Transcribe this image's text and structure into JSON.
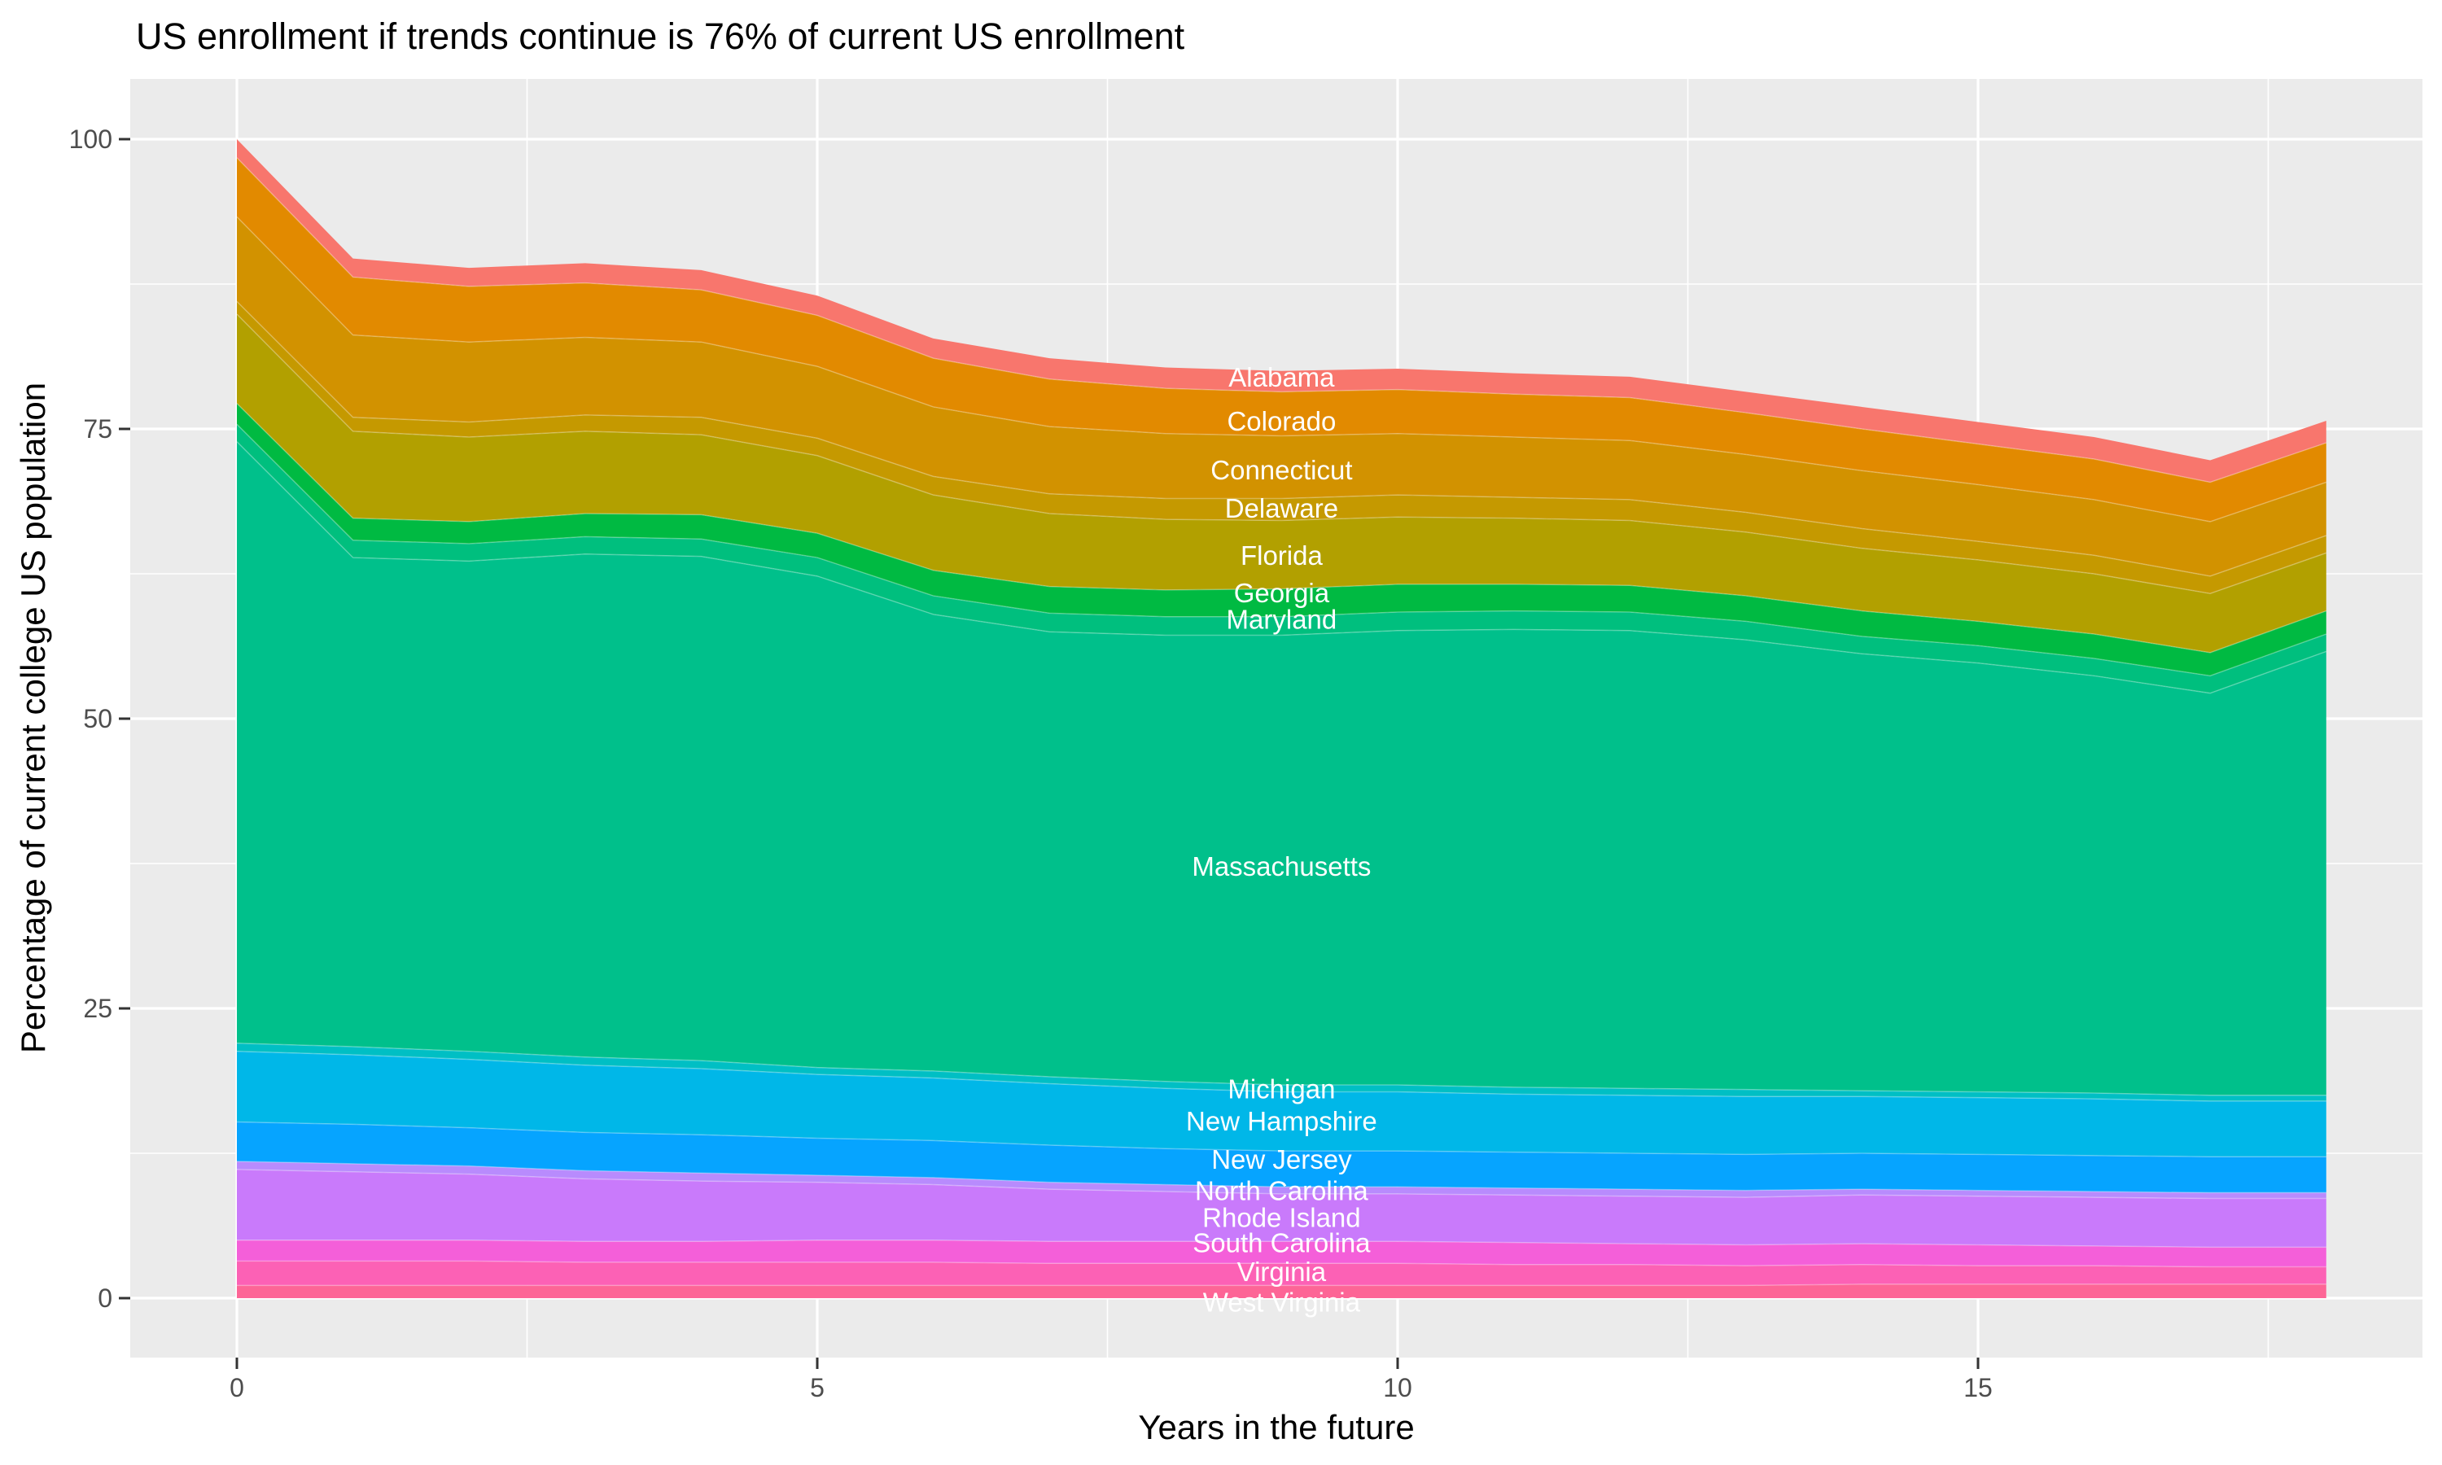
{
  "title": "US enrollment if trends continue is 76% of current US enrollment",
  "style": {
    "page_bg": "#FFFFFF",
    "panel_bg": "#EBEBEB",
    "grid_color": "#FFFFFF",
    "tick_color": "#333333",
    "tick_label_color": "#4D4D4D",
    "state_label_color": "#FFFFFF",
    "title_color": "#000000"
  },
  "chart_data": {
    "type": "area",
    "stacked": true,
    "title": "US enrollment if trends continue is 76% of current US enrollment",
    "xlabel": "Years in the future",
    "ylabel": "Percentage of current college US population",
    "x": [
      0,
      1,
      2,
      3,
      4,
      5,
      6,
      7,
      8,
      9,
      10,
      11,
      12,
      13,
      14,
      15,
      16,
      17,
      18
    ],
    "x_ticks": [
      0,
      5,
      10,
      15
    ],
    "x_minor": [
      2.5,
      7.5,
      12.5,
      17.5
    ],
    "y_ticks": [
      0,
      25,
      50,
      75,
      100
    ],
    "y_minor": [
      12.5,
      37.5,
      62.5,
      87.5
    ],
    "xlim": [
      0,
      18
    ],
    "ylim": [
      0,
      100
    ],
    "grid": true,
    "legend_position": "none",
    "total_by_year": [
      100,
      89.7,
      88.9,
      89.3,
      88.7,
      86.5,
      82.8,
      81.1,
      80.3,
      80.0,
      80.2,
      79.8,
      79.5,
      78.2,
      76.9,
      75.6,
      74.3,
      72.3,
      75.7
    ],
    "series": [
      {
        "name": "Alabama",
        "color": "#F8766D",
        "values": [
          1.6,
          1.6,
          1.6,
          1.7,
          1.7,
          1.7,
          1.7,
          1.8,
          1.8,
          1.8,
          1.8,
          1.8,
          1.8,
          1.8,
          1.9,
          1.9,
          1.9,
          1.9,
          1.9
        ]
      },
      {
        "name": "Colorado",
        "color": "#E28A00",
        "values": [
          5.1,
          5.0,
          4.8,
          4.7,
          4.5,
          4.4,
          4.2,
          4.1,
          3.9,
          3.8,
          3.8,
          3.7,
          3.7,
          3.6,
          3.6,
          3.5,
          3.5,
          3.4,
          3.4
        ]
      },
      {
        "name": "Connecticut",
        "color": "#D29200",
        "values": [
          7.3,
          7.1,
          6.9,
          6.7,
          6.5,
          6.2,
          6.0,
          5.8,
          5.6,
          5.4,
          5.3,
          5.2,
          5.1,
          5.0,
          5.0,
          4.9,
          4.8,
          4.7,
          4.6
        ]
      },
      {
        "name": "Delaware",
        "color": "#C59900",
        "values": [
          1.1,
          1.2,
          1.3,
          1.4,
          1.5,
          1.5,
          1.6,
          1.7,
          1.8,
          1.9,
          1.9,
          1.8,
          1.8,
          1.7,
          1.7,
          1.6,
          1.6,
          1.5,
          1.5
        ]
      },
      {
        "name": "Florida",
        "color": "#B2A000",
        "values": [
          7.7,
          7.5,
          7.3,
          7.1,
          6.9,
          6.7,
          6.5,
          6.3,
          6.1,
          5.9,
          5.8,
          5.7,
          5.6,
          5.5,
          5.4,
          5.3,
          5.2,
          5.1,
          5.0
        ]
      },
      {
        "name": "Georgia",
        "color": "#00BA42",
        "values": [
          1.8,
          1.9,
          1.9,
          2.0,
          2.1,
          2.1,
          2.2,
          2.3,
          2.3,
          2.4,
          2.4,
          2.3,
          2.3,
          2.2,
          2.2,
          2.1,
          2.1,
          2.0,
          2.0
        ]
      },
      {
        "name": "Maryland",
        "color": "#00BF7E",
        "values": [
          1.5,
          1.5,
          1.5,
          1.5,
          1.5,
          1.6,
          1.6,
          1.6,
          1.6,
          1.6,
          1.6,
          1.6,
          1.6,
          1.6,
          1.5,
          1.5,
          1.5,
          1.5,
          1.5
        ]
      },
      {
        "name": "Massachusetts",
        "color": "#00C08B",
        "values": [
          51.9,
          42.2,
          42.3,
          43.4,
          43.5,
          42.4,
          39.4,
          38.4,
          38.5,
          38.8,
          39.2,
          39.5,
          39.5,
          38.8,
          37.7,
          37.0,
          36.0,
          34.7,
          38.3
        ]
      },
      {
        "name": "Michigan",
        "color": "#00BFC4",
        "values": [
          0.7,
          0.7,
          0.7,
          0.7,
          0.7,
          0.6,
          0.6,
          0.6,
          0.6,
          0.6,
          0.6,
          0.6,
          0.6,
          0.6,
          0.5,
          0.5,
          0.5,
          0.5,
          0.5
        ]
      },
      {
        "name": "New Hampshire",
        "color": "#00B7E8",
        "values": [
          6.1,
          6.0,
          5.9,
          5.8,
          5.7,
          5.5,
          5.4,
          5.3,
          5.2,
          5.1,
          5.1,
          5.0,
          5.0,
          5.0,
          4.9,
          4.9,
          4.9,
          4.8,
          4.8
        ]
      },
      {
        "name": "New Jersey",
        "color": "#06A4FF",
        "values": [
          3.4,
          3.4,
          3.3,
          3.3,
          3.3,
          3.2,
          3.2,
          3.2,
          3.1,
          3.1,
          3.1,
          3.1,
          3.1,
          3.1,
          3.1,
          3.1,
          3.1,
          3.1,
          3.1
        ]
      },
      {
        "name": "North Carolina",
        "color": "#B88BFD",
        "values": [
          0.7,
          0.7,
          0.7,
          0.7,
          0.7,
          0.6,
          0.6,
          0.6,
          0.6,
          0.6,
          0.6,
          0.6,
          0.6,
          0.6,
          0.5,
          0.5,
          0.5,
          0.5,
          0.5
        ]
      },
      {
        "name": "Rhode Island",
        "color": "#C97AFB",
        "values": [
          6.1,
          5.9,
          5.7,
          5.4,
          5.2,
          5.0,
          4.8,
          4.5,
          4.3,
          4.1,
          4.1,
          4.1,
          4.1,
          4.1,
          4.2,
          4.2,
          4.2,
          4.2,
          4.2
        ]
      },
      {
        "name": "South Carolina",
        "color": "#F45FD9",
        "values": [
          1.8,
          1.8,
          1.8,
          1.8,
          1.8,
          1.9,
          1.9,
          1.9,
          1.9,
          1.9,
          1.9,
          1.9,
          1.8,
          1.8,
          1.8,
          1.8,
          1.7,
          1.7,
          1.7
        ]
      },
      {
        "name": "Virginia",
        "color": "#FC61B5",
        "values": [
          2.1,
          2.1,
          2.1,
          2.0,
          2.0,
          2.0,
          2.0,
          1.9,
          1.9,
          1.9,
          1.9,
          1.8,
          1.8,
          1.7,
          1.7,
          1.6,
          1.6,
          1.5,
          1.5
        ]
      },
      {
        "name": "West Virginia",
        "color": "#FD6596",
        "values": [
          1.1,
          1.1,
          1.1,
          1.1,
          1.1,
          1.1,
          1.1,
          1.1,
          1.1,
          1.1,
          1.1,
          1.1,
          1.1,
          1.1,
          1.2,
          1.2,
          1.2,
          1.2,
          1.2
        ]
      }
    ],
    "annotations": [
      {
        "label": "Alabama",
        "x": 9,
        "y": 79.5
      },
      {
        "label": "Colorado",
        "x": 9,
        "y": 75.7
      },
      {
        "label": "Connecticut",
        "x": 9,
        "y": 71.5
      },
      {
        "label": "Delaware",
        "x": 9,
        "y": 68.2
      },
      {
        "label": "Florida",
        "x": 9,
        "y": 64.1
      },
      {
        "label": "Georgia",
        "x": 9,
        "y": 60.9
      },
      {
        "label": "Maryland",
        "x": 9,
        "y": 58.6
      },
      {
        "label": "Massachusetts",
        "x": 9,
        "y": 37.3
      },
      {
        "label": "Michigan",
        "x": 9,
        "y": 18.1
      },
      {
        "label": "New Hampshire",
        "x": 9,
        "y": 15.3
      },
      {
        "label": "New Jersey",
        "x": 9,
        "y": 12.0
      },
      {
        "label": "North Carolina",
        "x": 9,
        "y": 9.3
      },
      {
        "label": "Rhode Island",
        "x": 9,
        "y": 7.0
      },
      {
        "label": "South Carolina",
        "x": 9,
        "y": 4.8
      },
      {
        "label": "Virginia",
        "x": 9,
        "y": 2.3
      },
      {
        "label": "West Virginia",
        "x": 9,
        "y": -0.3
      }
    ]
  }
}
